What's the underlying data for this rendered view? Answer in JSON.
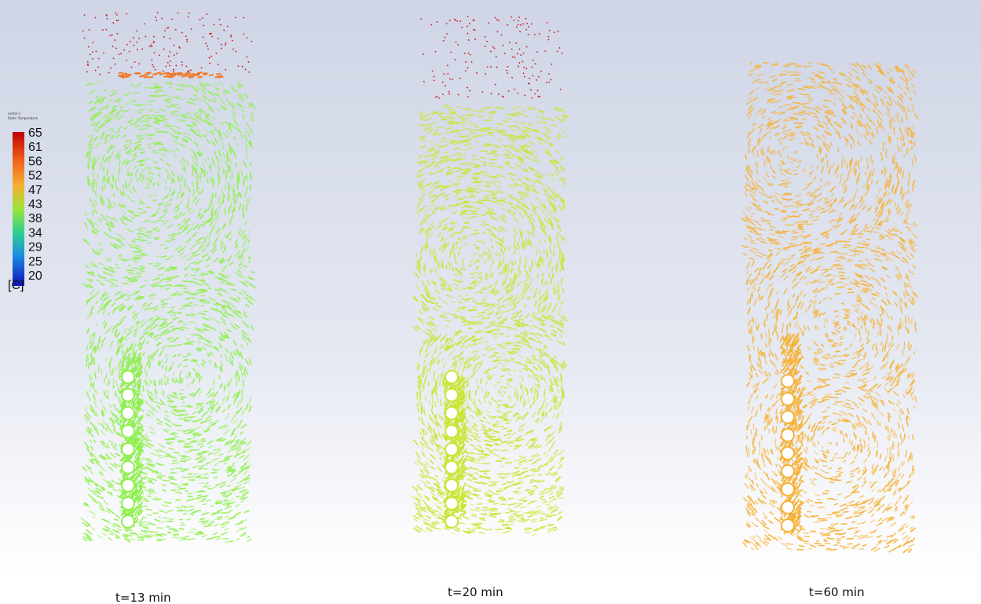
{
  "legend": {
    "title_lines": [
      "vector-1",
      "Static Temperature"
    ],
    "labels": [
      "65",
      "61",
      "56",
      "52",
      "47",
      "43",
      "38",
      "34",
      "29",
      "25",
      "20"
    ],
    "unit": "[C]"
  },
  "panels": [
    {
      "caption": "t=13 min"
    },
    {
      "caption": "t=20 min"
    },
    {
      "caption": "t=60 min"
    }
  ]
}
